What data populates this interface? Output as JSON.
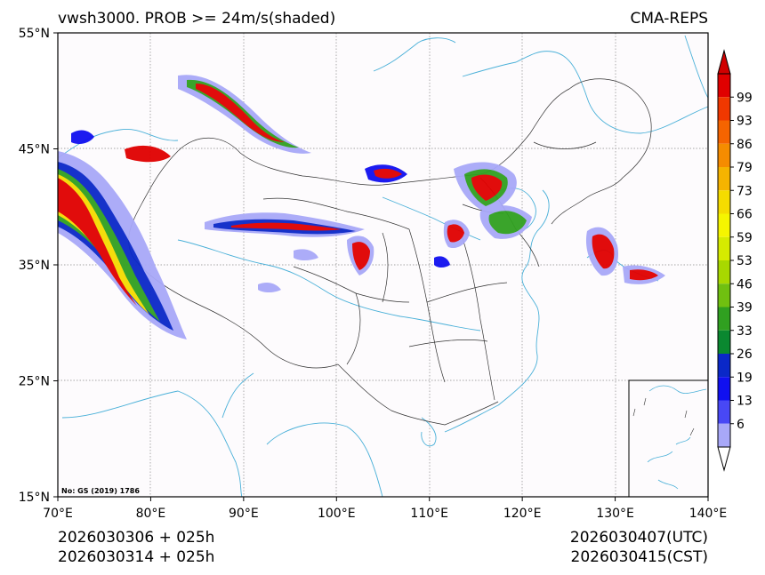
{
  "title_left": "vwsh3000. PROB >= 24m/s(shaded)",
  "title_right": "CMA-REPS",
  "map": {
    "lon_labels": [
      "70°E",
      "80°E",
      "90°E",
      "100°E",
      "110°E",
      "120°E",
      "130°E",
      "140°E"
    ],
    "lat_labels": [
      "55°N",
      "45°N",
      "35°N",
      "25°N",
      "15°N"
    ],
    "lon_values": [
      70,
      80,
      90,
      100,
      110,
      120,
      130,
      140
    ],
    "lat_values": [
      55,
      45,
      35,
      25,
      15
    ],
    "lon_range": [
      70,
      140
    ],
    "lat_range": [
      15,
      55
    ],
    "map_number": "No: GS (2019) 1786"
  },
  "colorbar": {
    "labels": [
      "99",
      "93",
      "86",
      "79",
      "73",
      "66",
      "59",
      "53",
      "46",
      "39",
      "33",
      "26",
      "19",
      "13",
      "6"
    ],
    "colors": [
      "#e00000",
      "#f03800",
      "#f56400",
      "#f58c00",
      "#f5b400",
      "#f5dc00",
      "#f5f500",
      "#d6eb00",
      "#a8d800",
      "#70c010",
      "#30a020",
      "#0a8830",
      "#0a28c8",
      "#1010f0",
      "#4848f5",
      "#a8a8f8"
    ],
    "extend_max_color": "#d00000",
    "extend_min_color": "#ffffff"
  },
  "footer": {
    "init_utc": "2026030306  +  025h",
    "init_cst": "2026030314  +  025h",
    "valid_utc": "2026030407(UTC)",
    "valid_cst": "2026030415(CST)"
  },
  "colors": {
    "coast": "#4ab0d8",
    "border": "#333333",
    "background": "#fdfbfd"
  }
}
